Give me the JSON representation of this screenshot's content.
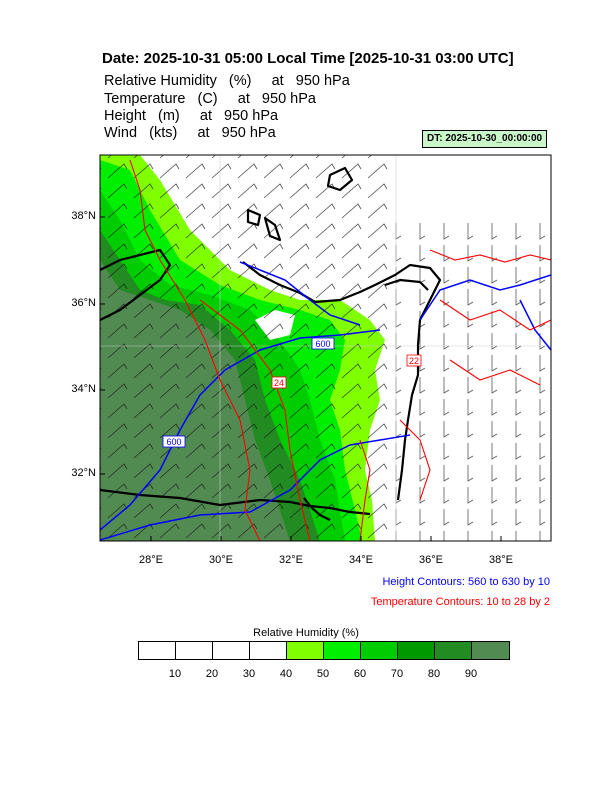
{
  "title": "Date: 2025-10-31  05:00 Local Time [2025-10-31  03:00 UTC]",
  "subtitles": [
    "Relative Humidity   (%)     at   950 hPa",
    "Temperature   (C)     at   950 hPa",
    "Height   (m)     at   950 hPa",
    "Wind   (kts)     at   950 hPa"
  ],
  "dt_label": "DT: 2025-10-30_00:00:00",
  "lat_labels": [
    "38°N",
    "36°N",
    "34°N",
    "32°N"
  ],
  "lon_labels": [
    "28°E",
    "30°E",
    "32°E",
    "34°E",
    "36°E",
    "38°E"
  ],
  "contour_labels": {
    "height_a": "600",
    "height_b": "600",
    "temp_a": "24",
    "temp_b": "22"
  },
  "height_note": "Height Contours: 560 to 630 by 10",
  "temp_note": "Temperature Contours: 10 to 28 by 2",
  "colors": {
    "height": "#0000ff",
    "temperature": "#ff0000",
    "coast": "#000000"
  },
  "legend": {
    "title": "Relative Humidity  (%)",
    "labels": [
      "10",
      "20",
      "30",
      "40",
      "50",
      "60",
      "70",
      "80",
      "90"
    ],
    "colors": [
      "#ffffff",
      "#ffffff",
      "#ffffff",
      "#ffffff",
      "#7fff00",
      "#00ee00",
      "#00cd00",
      "#009a00",
      "#228b22",
      "#528b52"
    ]
  }
}
